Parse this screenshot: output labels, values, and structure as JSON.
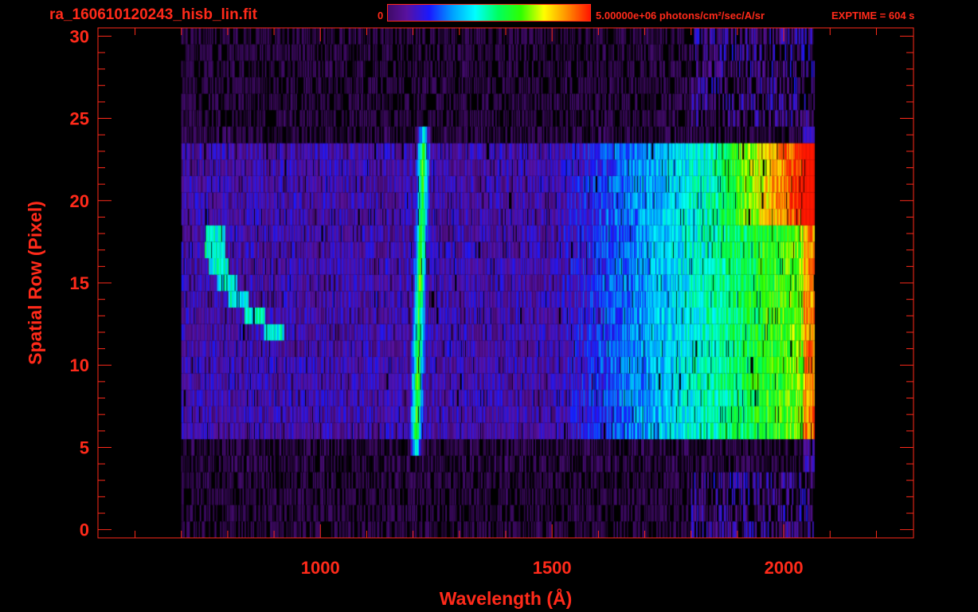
{
  "header": {
    "file_title": "ra_160610120243_hisb_lin.fit",
    "colorbar_min": "0",
    "colorbar_max_label": "5.00000e+06 photons/cm²/sec/A/sr",
    "exptime": "EXPTIME = 604 s"
  },
  "colors": {
    "foreground": "#ff2a1a",
    "background": "#000000",
    "colormap": [
      "#000000",
      "#3a0a5c",
      "#5a12a0",
      "#1a1aff",
      "#00a0ff",
      "#00ffff",
      "#00ff60",
      "#30ff00",
      "#ffff00",
      "#ff9000",
      "#ff1800"
    ]
  },
  "chart_data": {
    "type": "heatmap",
    "title": "ra_160610120243_hisb_lin.fit",
    "xlabel": "Wavelength (Å)",
    "ylabel": "Spatial Row (Pixel)",
    "xlim": [
      520,
      2280
    ],
    "ylim": [
      -0.5,
      30.5
    ],
    "x_ticks": [
      1000,
      1500,
      2000
    ],
    "y_ticks": [
      0,
      5,
      10,
      15,
      20,
      25,
      30
    ],
    "colorbar": {
      "min": 0,
      "max": 5000000,
      "units": "photons/cm²/sec/A/sr"
    },
    "exptime_s": 604,
    "data_extent": {
      "wavelength_min": 700,
      "wavelength_max": 2065,
      "row_min": 0,
      "row_max": 30
    },
    "features": [
      {
        "description": "bright emission line",
        "wavelength": 1216,
        "rows": [
          5,
          24
        ]
      },
      {
        "description": "curved bright feature",
        "wavelength_range": [
          760,
          900
        ],
        "rows": [
          12,
          18
        ]
      },
      {
        "description": "bright continuum band",
        "wavelength_range": [
          1600,
          2060
        ],
        "rows": [
          6,
          23
        ]
      },
      {
        "description": "peak intensity region",
        "wavelength_range": [
          1900,
          2060
        ],
        "rows": [
          19,
          23
        ]
      }
    ]
  }
}
